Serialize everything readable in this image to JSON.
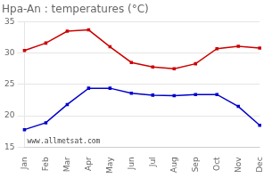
{
  "chart_data": {
    "type": "line",
    "title": "Hpa-An : temperatures (°C)",
    "categories": [
      "Jan",
      "Feb",
      "Mar",
      "Apr",
      "May",
      "Jun",
      "Jul",
      "Aug",
      "Sep",
      "Oct",
      "Nov",
      "Dec"
    ],
    "series": [
      {
        "color": "#cc0000",
        "values": [
          30.4,
          31.6,
          33.5,
          33.7,
          31.0,
          28.5,
          27.8,
          27.5,
          28.3,
          30.7,
          31.1,
          30.8
        ]
      },
      {
        "color": "#0000cc",
        "values": [
          17.8,
          18.9,
          21.8,
          24.4,
          24.4,
          23.6,
          23.3,
          23.2,
          23.4,
          23.4,
          21.5,
          18.5
        ]
      }
    ],
    "ylim": [
      15,
      35
    ],
    "yticks": [
      15,
      20,
      25,
      30,
      35
    ],
    "grid": true,
    "marker": "square",
    "annotations": [
      "www.allmetsat.com"
    ]
  }
}
